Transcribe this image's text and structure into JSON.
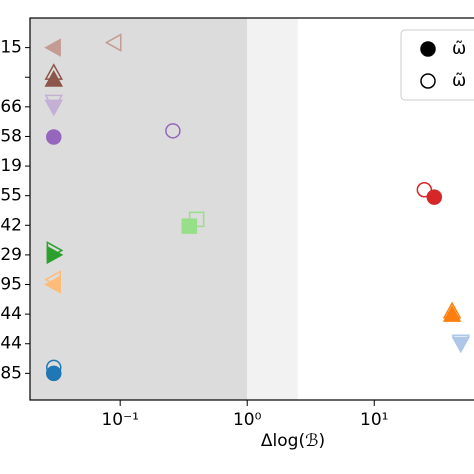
{
  "chart_data": {
    "type": "scatter",
    "xlabel": "Δlog(ℬ)",
    "log_x": true,
    "xlim": [
      0.0195,
      61
    ],
    "xticks": [
      {
        "value": 0.1,
        "label": "10⁻¹"
      },
      {
        "value": 1,
        "label": "10⁰"
      },
      {
        "value": 10,
        "label": "10¹"
      }
    ],
    "ylim": [
      11.9,
      -1.0
    ],
    "yticks": [
      {
        "value": 0,
        "label": "15"
      },
      {
        "value": 1,
        "label": null
      },
      {
        "value": 2,
        "label": "66"
      },
      {
        "value": 3,
        "label": "58"
      },
      {
        "value": 4,
        "label": "19"
      },
      {
        "value": 5,
        "label": "55"
      },
      {
        "value": 6,
        "label": "42"
      },
      {
        "value": 7,
        "label": "29"
      },
      {
        "value": 8,
        "label": "95"
      },
      {
        "value": 9,
        "label": "44"
      },
      {
        "value": 10,
        "label": "44"
      },
      {
        "value": 11,
        "label": "85"
      }
    ],
    "shaded_regions": [
      {
        "from": 0.0195,
        "to": 1,
        "color": "#dcdcdc"
      },
      {
        "from": 1,
        "to": 2.5,
        "color": "#f2f2f2"
      }
    ],
    "legend": [
      {
        "label": "ω̃",
        "filled": true
      },
      {
        "label": "ω̃",
        "filled": false
      }
    ],
    "points": [
      {
        "x": 0.03,
        "y": 0,
        "marker": "left",
        "color": "#c49c94",
        "filled": true
      },
      {
        "x": 0.09,
        "y": -0.17,
        "marker": "left",
        "color": "#c49c94",
        "filled": false
      },
      {
        "x": 0.03,
        "y": 0.85,
        "marker": "up",
        "color": "#8c564b",
        "filled": false
      },
      {
        "x": 0.03,
        "y": 1.08,
        "marker": "up",
        "color": "#8c564b",
        "filled": true
      },
      {
        "x": 0.03,
        "y": 1.83,
        "marker": "down",
        "color": "#c5b0d5",
        "filled": false
      },
      {
        "x": 0.03,
        "y": 2.0,
        "marker": "down",
        "color": "#c5b0d5",
        "filled": true
      },
      {
        "x": 0.03,
        "y": 3.02,
        "marker": "circle",
        "color": "#9467bd",
        "filled": true
      },
      {
        "x": 0.26,
        "y": 2.81,
        "marker": "circle",
        "color": "#9467bd",
        "filled": false
      },
      {
        "x": 24.8,
        "y": 4.8,
        "marker": "circle",
        "color": "#d62728",
        "filled": false
      },
      {
        "x": 29.7,
        "y": 5.05,
        "marker": "circle",
        "color": "#d62728",
        "filled": true
      },
      {
        "x": 0.4,
        "y": 5.8,
        "marker": "square",
        "color": "#98df8a",
        "filled": false
      },
      {
        "x": 0.35,
        "y": 6.03,
        "marker": "square",
        "color": "#98df8a",
        "filled": true
      },
      {
        "x": 0.03,
        "y": 6.85,
        "marker": "right",
        "color": "#2ca02c",
        "filled": false
      },
      {
        "x": 0.03,
        "y": 7.0,
        "marker": "right",
        "color": "#2ca02c",
        "filled": true
      },
      {
        "x": 0.03,
        "y": 7.83,
        "marker": "left",
        "color": "#ffbb78",
        "filled": false
      },
      {
        "x": 0.03,
        "y": 8.0,
        "marker": "left",
        "color": "#ffbb78",
        "filled": true
      },
      {
        "x": 41,
        "y": 8.9,
        "marker": "up",
        "color": "#ff7f0e",
        "filled": false
      },
      {
        "x": 41,
        "y": 9.02,
        "marker": "up",
        "color": "#ff7f0e",
        "filled": true
      },
      {
        "x": 48,
        "y": 9.93,
        "marker": "down",
        "color": "#aec7e8",
        "filled": false
      },
      {
        "x": 48,
        "y": 10.0,
        "marker": "down",
        "color": "#aec7e8",
        "filled": true
      },
      {
        "x": 0.03,
        "y": 10.8,
        "marker": "circle",
        "color": "#1f77b4",
        "filled": false
      },
      {
        "x": 0.03,
        "y": 11.0,
        "marker": "circle",
        "color": "#1f77b4",
        "filled": true
      }
    ]
  }
}
